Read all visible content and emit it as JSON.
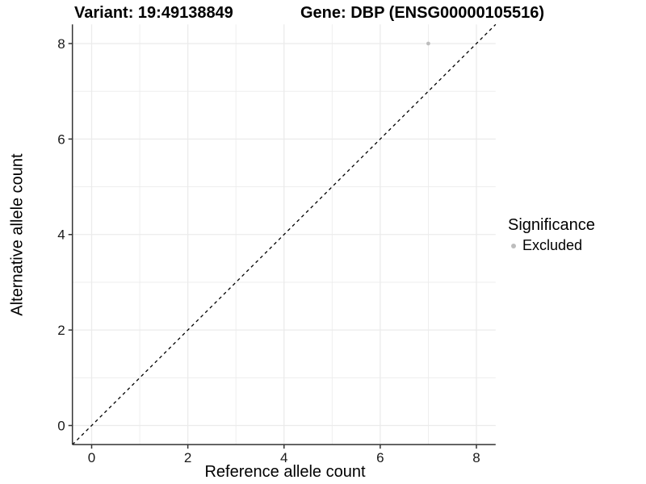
{
  "chart_data": {
    "type": "scatter",
    "title_left": "Variant: 19:49138849",
    "title_right": "Gene: DBP (ENSG00000105516)",
    "xlabel": "Reference allele count",
    "ylabel": "Alternative allele count",
    "xlim": [
      -0.4,
      8.4
    ],
    "ylim": [
      -0.4,
      8.4
    ],
    "xticks": [
      0,
      2,
      4,
      6,
      8
    ],
    "yticks": [
      0,
      2,
      4,
      6,
      8
    ],
    "grid_major": [
      0,
      2,
      4,
      6,
      8
    ],
    "grid_minor": [
      1,
      3,
      5,
      7
    ],
    "grid_on": true,
    "points": [
      {
        "x": 7,
        "y": 8,
        "series": "Excluded"
      }
    ],
    "reference_line": {
      "slope": 1,
      "intercept": 0,
      "style": "dashed",
      "color": "#000000"
    },
    "legend": {
      "title": "Significance",
      "position": "right",
      "entries": [
        {
          "label": "Excluded",
          "color": "#bdbdbd"
        }
      ]
    },
    "colors": {
      "point": "#bdbdbd",
      "grid": "#ebebeb",
      "axis": "#333333",
      "tick_text": "#1a1a1a",
      "background": "#ffffff"
    }
  }
}
